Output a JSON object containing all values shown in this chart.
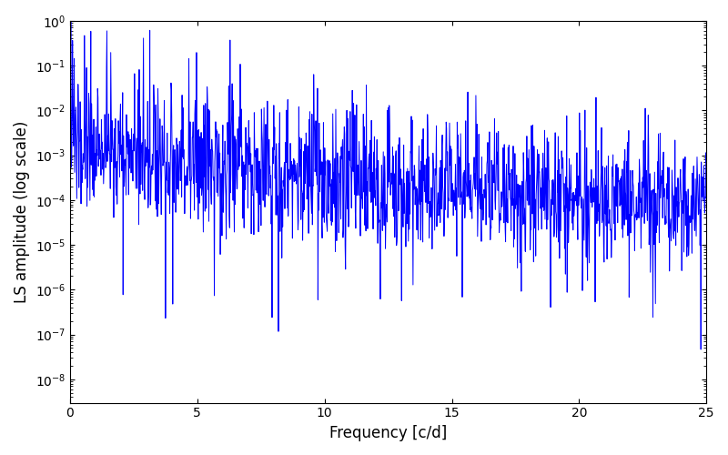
{
  "title": "",
  "xlabel": "Frequency [c/d]",
  "ylabel": "LS amplitude (log scale)",
  "xlim": [
    0,
    25
  ],
  "ylim": [
    3e-09,
    1.0
  ],
  "line_color": "#0000ff",
  "line_width": 0.7,
  "background_color": "#ffffff",
  "seed": 137,
  "n_points": 1500,
  "freq_max": 25.0,
  "base_amplitude": 0.0015,
  "decay_rate": 0.22,
  "noise_std": 0.7,
  "spike_prob": 0.08,
  "spike_max_factor": 60.0,
  "noise_floor": 8e-05,
  "deep_dip_prob": 0.015,
  "deep_dip_min": 1e-09,
  "deep_dip_max": 1e-06
}
